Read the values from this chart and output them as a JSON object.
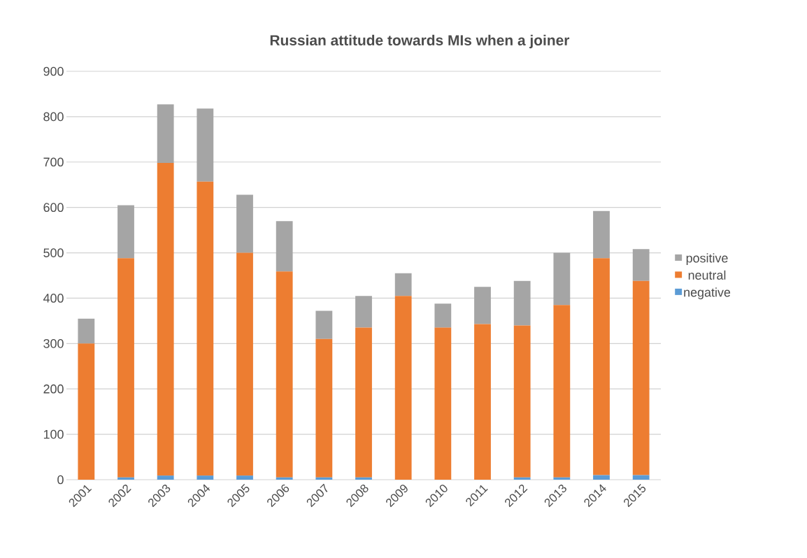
{
  "chart_data": {
    "type": "bar",
    "title": "Russian attitude towards MIs when a joiner",
    "categories": [
      "2001",
      "2002",
      "2003",
      "2004",
      "2005",
      "2006",
      "2007",
      "2008",
      "2009",
      "2010",
      "2011",
      "2012",
      "2013",
      "2014",
      "2015"
    ],
    "series": [
      {
        "name": "negative",
        "color": "#5b9bd5",
        "values": [
          0,
          5,
          9,
          9,
          9,
          5,
          5,
          5,
          0,
          0,
          0,
          5,
          5,
          10,
          10
        ]
      },
      {
        "name": "neutral",
        "color": "#ed7d31",
        "values": [
          300,
          483,
          689,
          648,
          491,
          454,
          305,
          330,
          405,
          335,
          343,
          335,
          380,
          478,
          428
        ]
      },
      {
        "name": "positive",
        "color": "#a5a5a5",
        "values": [
          55,
          117,
          129,
          161,
          128,
          111,
          62,
          70,
          50,
          53,
          82,
          98,
          115,
          104,
          70
        ]
      }
    ],
    "stacked": true,
    "ylim": [
      0,
      900
    ],
    "yticks": [
      0,
      100,
      200,
      300,
      400,
      500,
      600,
      700,
      800,
      900
    ],
    "grid": "y",
    "legend": "right"
  }
}
